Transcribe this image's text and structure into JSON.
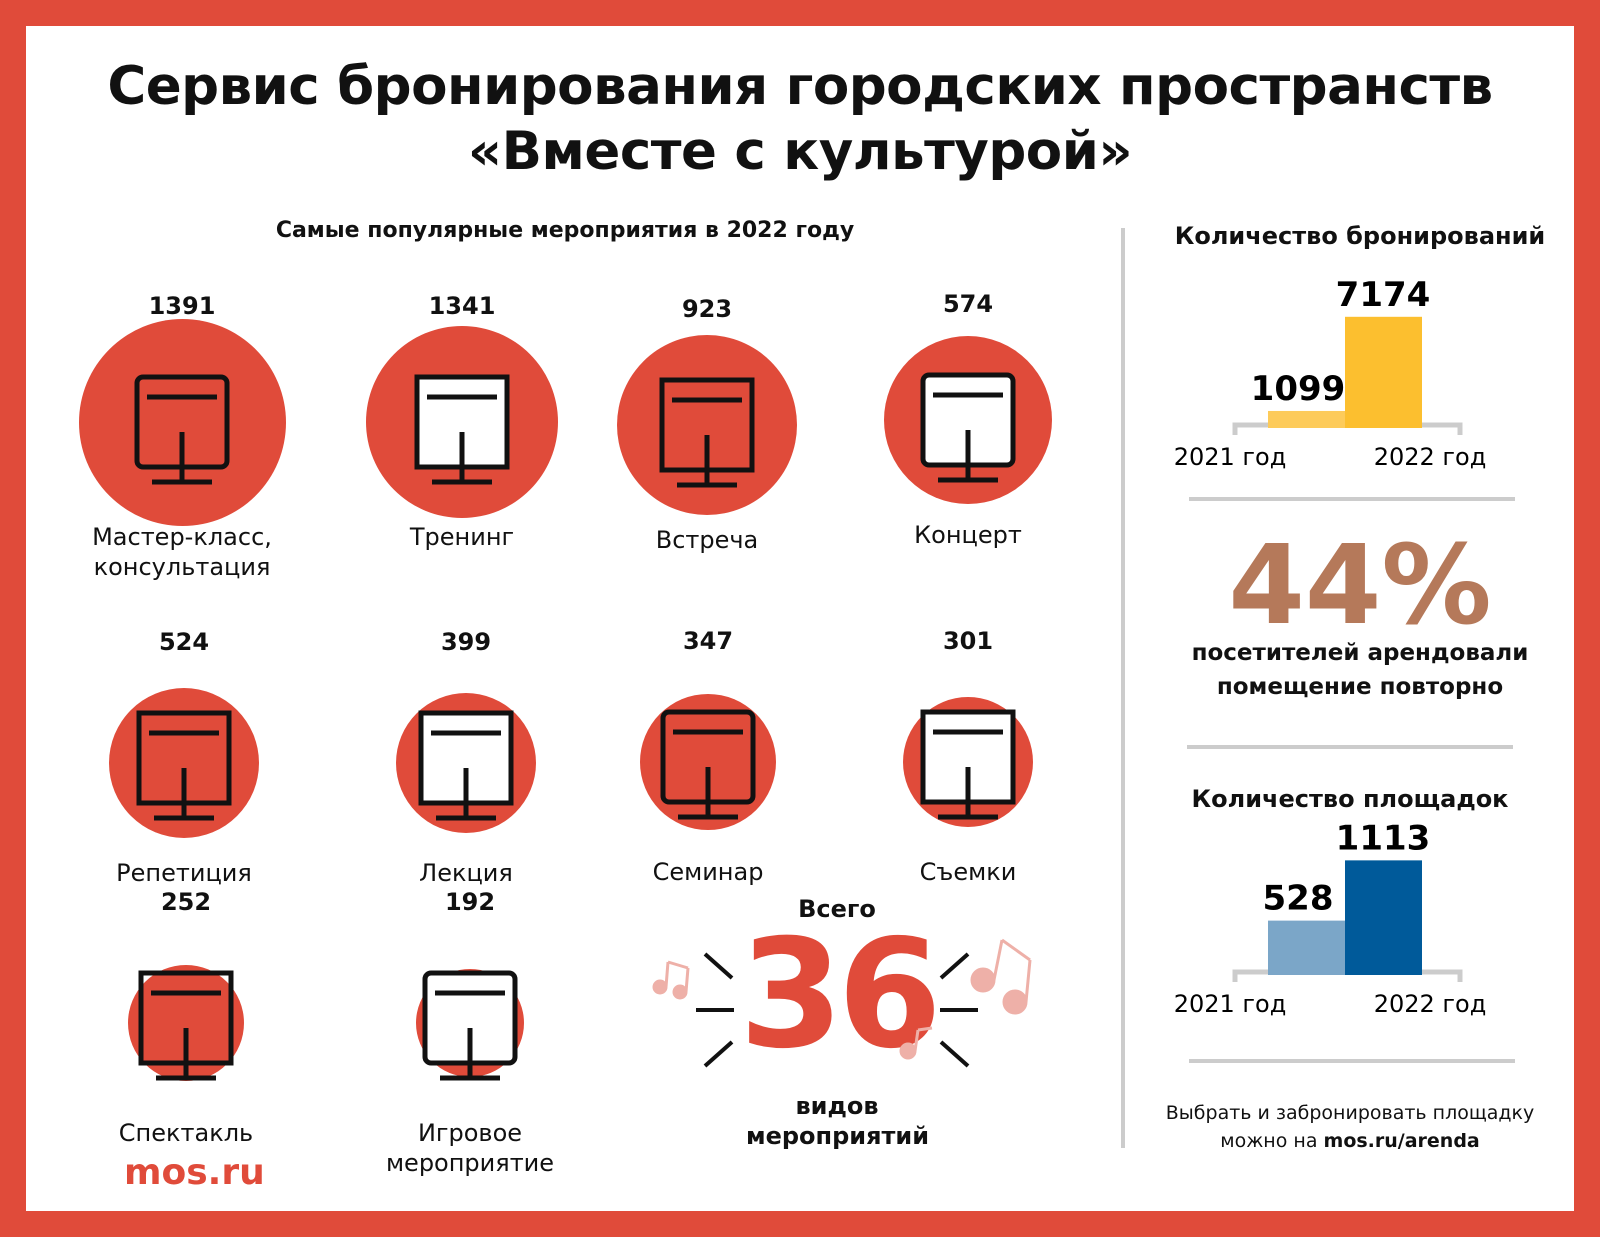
{
  "title": {
    "line1": "Сервис бронирования городских пространств",
    "line2": "«Вместе с культурой»"
  },
  "popular": {
    "heading": "Самые популярные мероприятия в 2022 году",
    "events": [
      {
        "count": "1391",
        "label": "Мастер-класс, консультация",
        "icon": "meeting-table-icon"
      },
      {
        "count": "1341",
        "label": "Тренинг",
        "icon": "presentation-audience-icon"
      },
      {
        "count": "923",
        "label": "Встреча",
        "icon": "speaker-podium-icon"
      },
      {
        "count": "574",
        "label": "Концерт",
        "icon": "loudspeaker-icon"
      },
      {
        "count": "524",
        "label": "Репетиция",
        "icon": "stage-lights-icon"
      },
      {
        "count": "399",
        "label": "Лекция",
        "icon": "lecturer-board-icon"
      },
      {
        "count": "347",
        "label": "Семинар",
        "icon": "lectern-microphone-icon"
      },
      {
        "count": "301",
        "label": "Съемки",
        "icon": "video-camera-icon"
      },
      {
        "count": "252",
        "label": "Спектакль",
        "icon": "theater-masks-icon"
      },
      {
        "count": "192",
        "label": "Игровое мероприятие",
        "icon": "puzzle-head-icon"
      }
    ],
    "total": {
      "top": "Всего",
      "value": "36",
      "bottom1": "видов",
      "bottom2": "мероприятий"
    }
  },
  "repeat": {
    "value": "44%",
    "text1": "посетителей арендовали",
    "text2": "помещение повторно"
  },
  "footer": {
    "text1": "Выбрать и забронировать площадку",
    "text2_prefix": "можно на ",
    "link": "mos.ru/arenda"
  },
  "logo": "mos.ru",
  "colors": {
    "brand_red": "#e04b3a",
    "bookings_2021": "#fdcb5a",
    "bookings_2022": "#fcbf2f",
    "venues_2021": "#7ba6c8",
    "venues_2022": "#005a9a",
    "percent": "#b5795a"
  },
  "chart_data": [
    {
      "type": "bar",
      "title": "Количество бронирований",
      "categories": [
        "2021 год",
        "2022 год"
      ],
      "values": [
        1099,
        7174
      ],
      "data_labels": [
        "1099",
        "7174"
      ]
    },
    {
      "type": "bar",
      "title": "Количество площадок",
      "categories": [
        "2021 год",
        "2022 год"
      ],
      "values": [
        528,
        1113
      ],
      "data_labels": [
        "528",
        "1113"
      ]
    }
  ]
}
